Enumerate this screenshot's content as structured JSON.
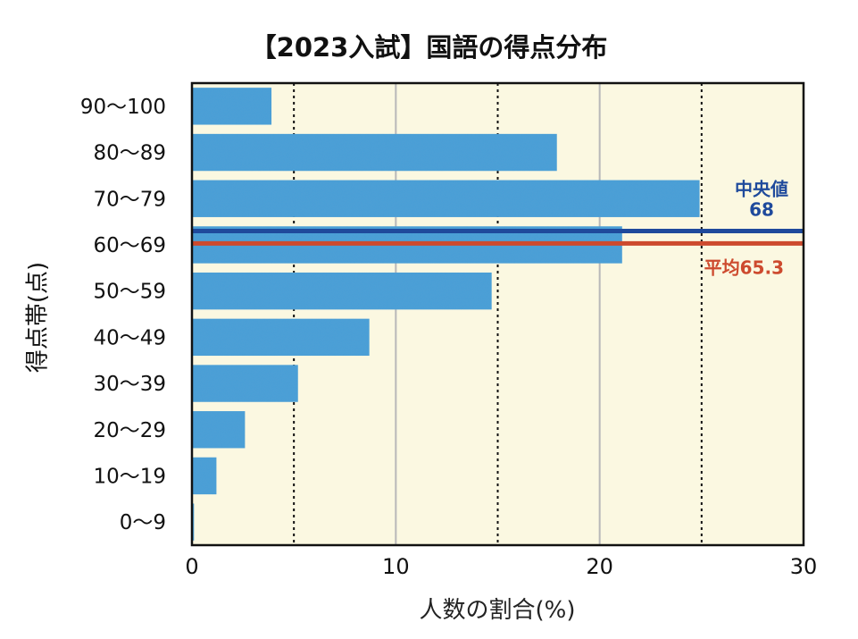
{
  "chart_data": {
    "type": "bar",
    "orientation": "horizontal",
    "title": "【2023入試】国語の得点分布",
    "xlabel": "人数の割合(%)",
    "ylabel": "得点帯(点)",
    "categories": [
      "0〜9",
      "10〜19",
      "20〜29",
      "30〜39",
      "40〜49",
      "50〜59",
      "60〜69",
      "70〜79",
      "80〜89",
      "90〜100"
    ],
    "values": [
      0.1,
      1.2,
      2.6,
      5.2,
      8.7,
      14.7,
      21.1,
      24.9,
      17.9,
      3.9
    ],
    "xlim": [
      0,
      30
    ],
    "x_ticks": [
      0,
      10,
      20,
      30
    ],
    "x_tick_labels": [
      "0",
      "10",
      "20",
      "30"
    ],
    "gridlines_solid": [
      10,
      20
    ],
    "gridlines_dotted": [
      5,
      15,
      25
    ],
    "colors": {
      "bar": "#4a9fd8",
      "plot_background": "#fbf8e1",
      "median_line": "#1f4a9c",
      "mean_line": "#cd4a2e",
      "grid_solid": "#b8b8b8",
      "grid_dotted": "#111111"
    },
    "reference_lines": [
      {
        "label": "中央値",
        "value_text": "68",
        "score": 68,
        "color": "#1f4a9c"
      },
      {
        "label": "平均",
        "value_text": "65.3",
        "score": 65.3,
        "color": "#cd4a2e"
      }
    ]
  }
}
